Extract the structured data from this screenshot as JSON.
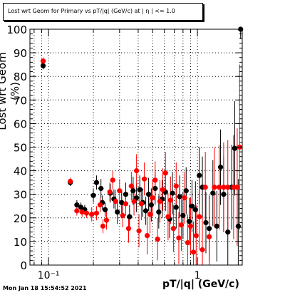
{
  "chart_data": {
    "type": "scatter",
    "title": "Lost wrt Geom for Primary vs pT/|q| (GeV/c) at | η | <= 1.0",
    "xlabel": "pT/|q| (GeV/c)",
    "ylabel": "Lost wrt Geom (%)",
    "xscale": "log",
    "xlim": [
      0.075,
      2.0
    ],
    "ylim": [
      0,
      100
    ],
    "grid": true,
    "y_ticks": [
      0,
      10,
      20,
      30,
      40,
      50,
      60,
      70,
      80,
      90,
      100
    ],
    "y_tick_labels": [
      "0",
      "10",
      "20",
      "30",
      "40",
      "50",
      "60",
      "70",
      "80",
      "90",
      "100"
    ],
    "x_ticks": [
      0.1,
      1
    ],
    "x_tick_labels": [
      "10⁻¹",
      "1"
    ],
    "series": [
      {
        "color": "#000000",
        "points": [
          [
            0.092,
            84.5,
            1.5
          ],
          [
            0.14,
            35,
            1.5
          ],
          [
            0.155,
            25.5,
            2
          ],
          [
            0.165,
            24.5,
            2
          ],
          [
            0.175,
            23.5,
            2
          ],
          [
            0.2,
            29.5,
            3
          ],
          [
            0.21,
            35,
            3
          ],
          [
            0.225,
            32.5,
            4
          ],
          [
            0.23,
            26.5,
            3
          ],
          [
            0.24,
            23.5,
            3
          ],
          [
            0.26,
            30.5,
            4
          ],
          [
            0.275,
            28,
            4
          ],
          [
            0.29,
            22.5,
            5
          ],
          [
            0.31,
            26.5,
            5
          ],
          [
            0.33,
            30,
            5
          ],
          [
            0.35,
            20.5,
            5
          ],
          [
            0.37,
            31.5,
            6
          ],
          [
            0.39,
            28.5,
            6
          ],
          [
            0.41,
            32,
            6
          ],
          [
            0.43,
            26.5,
            6
          ],
          [
            0.45,
            23,
            6
          ],
          [
            0.47,
            30,
            7
          ],
          [
            0.49,
            25.5,
            7
          ],
          [
            0.52,
            32.5,
            7
          ],
          [
            0.55,
            22.5,
            7
          ],
          [
            0.58,
            28,
            8
          ],
          [
            0.61,
            31,
            8
          ],
          [
            0.65,
            19.5,
            8
          ],
          [
            0.68,
            30.5,
            9
          ],
          [
            0.72,
            24.5,
            9
          ],
          [
            0.76,
            29,
            9
          ],
          [
            0.8,
            21,
            10
          ],
          [
            0.84,
            31.5,
            10
          ],
          [
            0.88,
            18.5,
            10
          ],
          [
            0.92,
            25,
            11
          ],
          [
            0.97,
            23.5,
            12
          ],
          [
            1.03,
            38,
            12
          ],
          [
            1.08,
            33,
            13
          ],
          [
            1.14,
            18,
            13
          ],
          [
            1.2,
            15.5,
            14
          ],
          [
            1.27,
            30.5,
            14
          ],
          [
            1.35,
            16.5,
            15
          ],
          [
            1.43,
            41.5,
            16
          ],
          [
            1.5,
            30,
            16
          ],
          [
            1.6,
            14,
            17
          ],
          [
            1.7,
            33,
            18
          ],
          [
            1.78,
            49.5,
            20
          ],
          [
            1.88,
            16.5,
            20
          ],
          [
            1.95,
            100,
            4
          ]
        ]
      },
      {
        "color": "#ff0000",
        "points": [
          [
            0.092,
            86.5,
            1.5
          ],
          [
            0.14,
            35.5,
            1.5
          ],
          [
            0.155,
            23,
            2
          ],
          [
            0.168,
            22.5,
            2
          ],
          [
            0.18,
            22,
            2
          ],
          [
            0.195,
            21.5,
            3
          ],
          [
            0.21,
            22,
            3
          ],
          [
            0.222,
            25.5,
            3
          ],
          [
            0.232,
            16.5,
            3
          ],
          [
            0.245,
            19,
            4
          ],
          [
            0.258,
            31,
            4
          ],
          [
            0.27,
            36,
            4
          ],
          [
            0.282,
            27,
            5
          ],
          [
            0.3,
            31.5,
            5
          ],
          [
            0.315,
            21,
            5
          ],
          [
            0.33,
            26,
            5
          ],
          [
            0.345,
            15.5,
            6
          ],
          [
            0.36,
            33.5,
            6
          ],
          [
            0.375,
            27,
            6
          ],
          [
            0.39,
            40,
            7
          ],
          [
            0.405,
            14.5,
            7
          ],
          [
            0.42,
            26,
            7
          ],
          [
            0.44,
            36.5,
            7
          ],
          [
            0.46,
            12.5,
            8
          ],
          [
            0.48,
            21.5,
            8
          ],
          [
            0.5,
            28.5,
            8
          ],
          [
            0.52,
            36,
            8
          ],
          [
            0.54,
            11,
            9
          ],
          [
            0.56,
            27,
            9
          ],
          [
            0.585,
            32,
            9
          ],
          [
            0.61,
            39,
            9
          ],
          [
            0.635,
            20.5,
            10
          ],
          [
            0.66,
            27.5,
            10
          ],
          [
            0.69,
            15.5,
            10
          ],
          [
            0.72,
            33.5,
            10
          ],
          [
            0.75,
            11.5,
            11
          ],
          [
            0.78,
            17,
            11
          ],
          [
            0.82,
            28.5,
            11
          ],
          [
            0.86,
            9.5,
            12
          ],
          [
            0.9,
            16.5,
            12
          ],
          [
            0.94,
            5.5,
            13
          ],
          [
            0.98,
            12.5,
            13
          ],
          [
            1.03,
            20.5,
            14
          ],
          [
            1.08,
            6.5,
            14
          ],
          [
            1.13,
            33,
            15
          ],
          [
            1.2,
            12,
            16
          ],
          [
            1.3,
            33,
            17
          ],
          [
            1.4,
            33,
            18
          ],
          [
            1.5,
            33,
            19
          ],
          [
            1.6,
            33,
            20
          ],
          [
            1.75,
            33,
            22
          ],
          [
            1.85,
            33,
            25
          ],
          [
            1.92,
            50,
            35
          ]
        ]
      }
    ]
  },
  "footer": {
    "datestamp": "Mon Jan 18 15:54:52 2021"
  }
}
